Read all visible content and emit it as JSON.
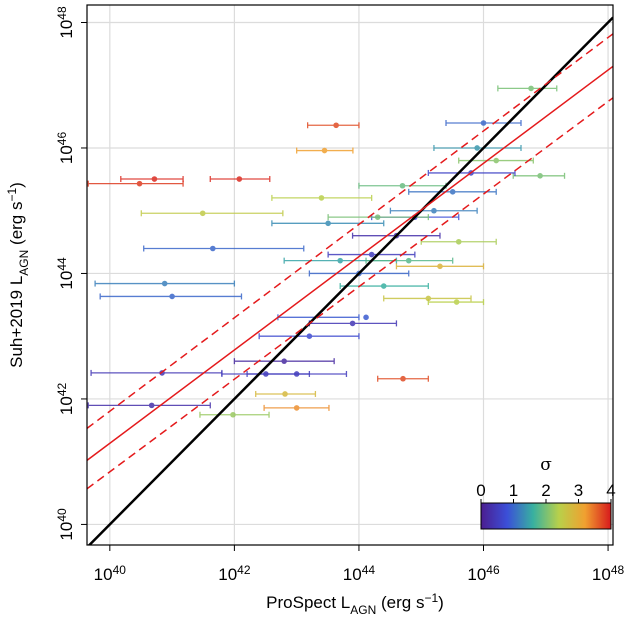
{
  "chart_data": {
    "type": "scatter",
    "xlabel": "ProSpect L_{AGN} (erg s^{−1})",
    "ylabel": "Suh+2019 L_{AGN} (erg s^{−1})",
    "log_x": true,
    "log_y": true,
    "grid": true,
    "xlim": [
      4.3e+39,
      1.2e+48
    ],
    "ylim": [
      4.7e+39,
      1.9e+48
    ],
    "xticks": [
      {
        "value": 1e+40,
        "label": "10^{40}"
      },
      {
        "value": 1e+42,
        "label": "10^{42}"
      },
      {
        "value": 1e+44,
        "label": "10^{44}"
      },
      {
        "value": 1e+46,
        "label": "10^{46}"
      },
      {
        "value": 1e+48,
        "label": "10^{48}"
      }
    ],
    "yticks": [
      {
        "value": 1e+40,
        "label": "10^{40}"
      },
      {
        "value": 1e+42,
        "label": "10^{42}"
      },
      {
        "value": 1e+44,
        "label": "10^{44}"
      },
      {
        "value": 1e+46,
        "label": "10^{46}"
      },
      {
        "value": 1e+48,
        "label": "10^{48}"
      }
    ],
    "points": {
      "x": [
        3e+40,
        5.2e+40,
        1.2e+42,
        4.3e+43,
        5.1e+44,
        5.8e+46,
        7.6e+40,
        1e+41,
        4.5e+41,
        3.1e+41,
        4.7e+40,
        6.9e+40,
        9.5e+41,
        1e+43,
        6.5e+42,
        3.7e+45,
        8.1e+46,
        2.8e+43,
        1.6e+44,
        4e+44,
        7.9e+44,
        1.6e+45,
        1e+44,
        5e+43,
        3.2e+45,
        6.3e+45,
        2e+44,
        6.3e+44,
        1.3e+44,
        1.3e+45,
        4e+45,
        3.2e+43,
        7.9e+43,
        1.6e+43,
        6.3e+42,
        1e+43,
        7.9e+45,
        1.6e+46,
        2.5e+44,
        1e+46,
        3.2e+42,
        5e+44,
        2e+45,
        2.5e+43
      ],
      "y": [
        2.7e+45,
        3.2e+45,
        3.2e+45,
        2.3e+46,
        2.1e+42,
        8.9e+46,
        6.9e+43,
        4.3e+43,
        2.5e+44,
        9.1e+44,
        7.9e+41,
        2.6e+42,
        5.6e+41,
        7.2e+41,
        1.2e+42,
        3.5e+43,
        3.6e+45,
        9.1e+45,
        2e+44,
        4e+44,
        7.9e+44,
        1e+45,
        1e+44,
        1.6e+44,
        2e+45,
        4e+45,
        7.9e+44,
        1.6e+44,
        2e+43,
        4e+43,
        3.2e+44,
        6.3e+44,
        1.6e+43,
        1e+43,
        4e+42,
        2.5e+42,
        1e+46,
        6.3e+45,
        6.3e+43,
        2.5e+46,
        2.5e+42,
        2.5e+45,
        1.3e+44,
        1.6e+45
      ],
      "x_err_low": [
        4.5e+39,
        1.5e+40,
        4.1e+41,
        1.5e+43,
        2e+44,
        1.7e+46,
        5.8e+39,
        7e+39,
        3.5e+40,
        3.2e+40,
        4.5e+39,
        5e+39,
        2.8e+41,
        3e+42,
        2.2e+42,
        1.3e+45,
        3e+46,
        1e+43,
        3.2e+43,
        7.9e+43,
        1.6e+44,
        3.2e+44,
        1.6e+43,
        6.3e+42,
        6.3e+44,
        1.3e+45,
        3.2e+43,
        1.3e+44,
        5e+42,
        2.5e+44,
        1e+45,
        4e+42,
        1.6e+43,
        2.5e+42,
        1e+42,
        1.6e+42,
        1.6e+45,
        4e+45,
        5e+43,
        2.5e+45,
        6.3e+41,
        1e+44,
        4e+44,
        4e+42
      ],
      "x_err_high": [
        1.5e+41,
        1.5e+41,
        3.7e+42,
        1e+44,
        1.3e+45,
        1.5e+47,
        1e+42,
        1.3e+42,
        1.3e+43,
        6e+42,
        4.1e+41,
        6.3e+41,
        3.6e+42,
        3.3e+43,
        2e+43,
        1e+46,
        2e+47,
        8e+43,
        7.9e+44,
        2e+45,
        4e+45,
        7.9e+45,
        6.3e+44,
        4e+44,
        1.6e+46,
        3.2e+46,
        1.3e+45,
        3.2e+45,
        1e+44,
        6.3e+45,
        1.6e+46,
        2.5e+44,
        4e+44,
        1e+44,
        4e+43,
        6.3e+43,
        4e+46,
        6.3e+46,
        1.3e+45,
        4e+46,
        1.6e+43,
        2.5e+45,
        1e+46,
        1.6e+44
      ],
      "sigma": [
        3.8,
        3.9,
        3.9,
        3.7,
        3.7,
        2.0,
        1.2,
        1.0,
        1.0,
        2.5,
        0.3,
        0.4,
        2.2,
        3.3,
        2.8,
        2.4,
        2.0,
        3.2,
        0.5,
        0.3,
        0.8,
        1.2,
        1.0,
        1.5,
        1.1,
        0.6,
        2.0,
        1.8,
        0.9,
        2.6,
        2.3,
        1.3,
        0.4,
        0.7,
        0.2,
        0.5,
        1.4,
        2.1,
        1.6,
        1.0,
        0.5,
        1.9,
        2.9,
        2.4
      ]
    },
    "lines": [
      {
        "color": "#000000",
        "dash": false,
        "width": 2.5,
        "x": [
          4.3e+39,
          1.2e+48
        ],
        "y": [
          4.3e+39,
          1.2e+48
        ]
      },
      {
        "color": "#e41a1c",
        "dash": false,
        "width": 1.5,
        "x": [
          4.3e+39,
          1.2e+48
        ],
        "y": [
          1.05e+41,
          2e+47
        ]
      },
      {
        "color": "#e41a1c",
        "dash": true,
        "width": 1.5,
        "x": [
          4.3e+39,
          1.2e+48
        ],
        "y": [
          3.4e+41,
          6.6e+47
        ]
      },
      {
        "color": "#e41a1c",
        "dash": true,
        "width": 1.5,
        "x": [
          4.3e+39,
          1.2e+48
        ],
        "y": [
          3.7e+40,
          6.3e+46
        ]
      }
    ],
    "colorbar": {
      "label": "σ",
      "lim": [
        0,
        4
      ],
      "ticks": [
        0,
        1,
        2,
        3,
        4
      ],
      "colors": [
        "#4b1d8f",
        "#3b4fd8",
        "#38b0a0",
        "#b9d04a",
        "#f0a030",
        "#d7191c"
      ]
    }
  }
}
